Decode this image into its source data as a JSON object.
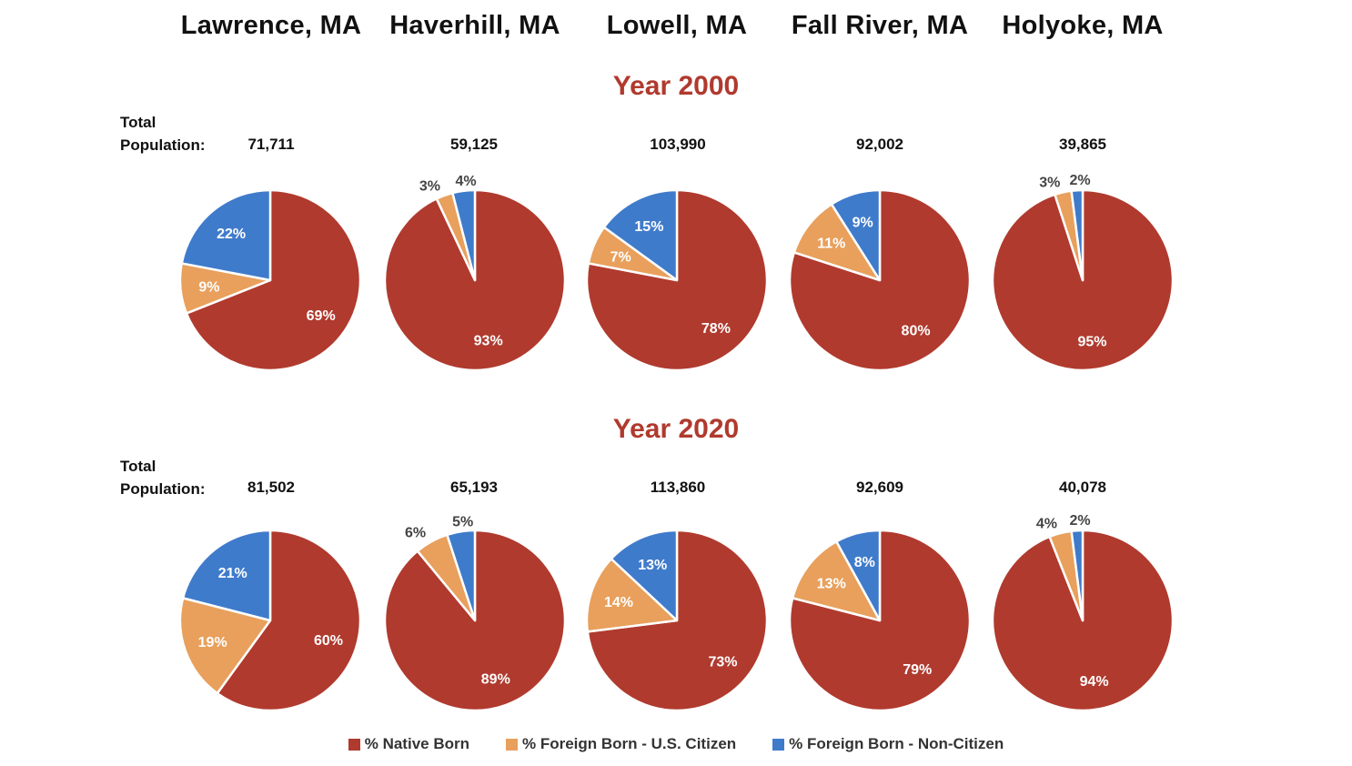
{
  "colors": {
    "native": "#B03A2E",
    "citizen": "#E8A05C",
    "noncitizen": "#3F7BCB",
    "year_title": "#B03A2E"
  },
  "cities": [
    "Lawrence, MA",
    "Haverhill, MA",
    "Lowell, MA",
    "Fall River, MA",
    "Holyoke, MA"
  ],
  "population_label_line1": "Total",
  "population_label_line2": "Population:",
  "legend": [
    "%  Native Born",
    "% Foreign Born - U.S. Citizen",
    "% Foreign Born - Non-Citizen"
  ],
  "chart_data": [
    {
      "type": "pie",
      "title": "Year 2000",
      "categories": [
        "% Native Born",
        "% Foreign Born - U.S. Citizen",
        "% Foreign Born - Non-Citizen"
      ],
      "series": [
        {
          "city": "Lawrence, MA",
          "population": "71,711",
          "values": [
            69,
            9,
            22
          ]
        },
        {
          "city": "Haverhill, MA",
          "population": "59,125",
          "values": [
            93,
            3,
            4
          ]
        },
        {
          "city": "Lowell, MA",
          "population": "103,990",
          "values": [
            78,
            7,
            15
          ]
        },
        {
          "city": "Fall River, MA",
          "population": "92,002",
          "values": [
            80,
            11,
            9
          ]
        },
        {
          "city": "Holyoke, MA",
          "population": "39,865",
          "values": [
            95,
            3,
            2
          ]
        }
      ]
    },
    {
      "type": "pie",
      "title": "Year 2020",
      "categories": [
        "% Native Born",
        "% Foreign Born - U.S. Citizen",
        "% Foreign Born - Non-Citizen"
      ],
      "series": [
        {
          "city": "Lawrence, MA",
          "population": "81,502",
          "values": [
            60,
            19,
            21
          ]
        },
        {
          "city": "Haverhill, MA",
          "population": "65,193",
          "values": [
            89,
            6,
            5
          ]
        },
        {
          "city": "Lowell, MA",
          "population": "113,860",
          "values": [
            73,
            14,
            13
          ]
        },
        {
          "city": "Fall River, MA",
          "population": "92,609",
          "values": [
            79,
            13,
            8
          ]
        },
        {
          "city": "Holyoke, MA",
          "population": "40,078",
          "values": [
            94,
            4,
            2
          ]
        }
      ]
    }
  ]
}
